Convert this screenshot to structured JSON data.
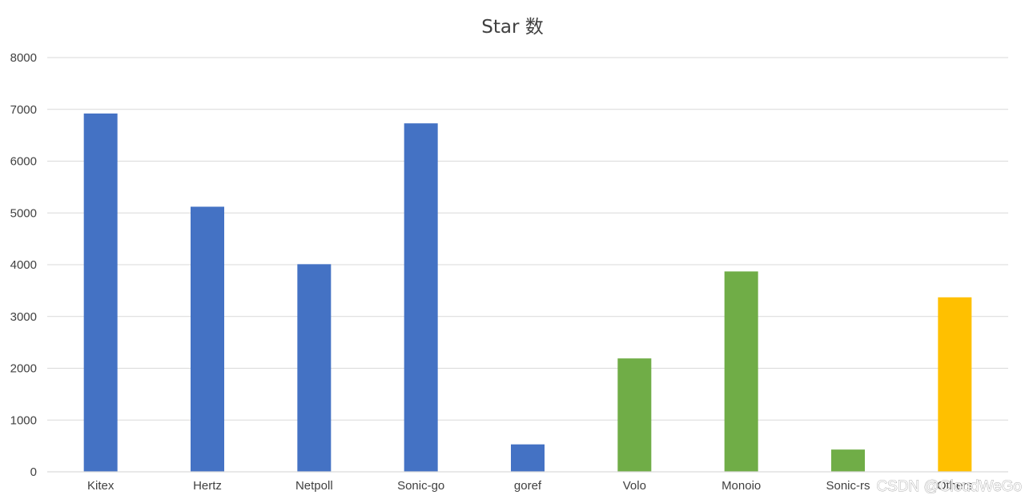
{
  "chart_data": {
    "type": "bar",
    "title": "Star 数",
    "xlabel": "",
    "ylabel": "",
    "ylim": [
      0,
      8000
    ],
    "yticks": [
      0,
      1000,
      2000,
      3000,
      4000,
      5000,
      6000,
      7000,
      8000
    ],
    "grid": true,
    "categories": [
      "Kitex",
      "Hertz",
      "Netpoll",
      "Sonic-go",
      "goref",
      "Volo",
      "Monoio",
      "Sonic-rs",
      "Others"
    ],
    "values": [
      6920,
      5120,
      4010,
      6730,
      530,
      2190,
      3870,
      430,
      3370
    ],
    "colors": [
      "#4472C4",
      "#4472C4",
      "#4472C4",
      "#4472C4",
      "#4472C4",
      "#70AD47",
      "#70AD47",
      "#70AD47",
      "#FFC000"
    ]
  },
  "watermark": "CSDN @CloudWeGo",
  "style": {
    "gridline_color": "#d9d9d9",
    "axis_color": "#d9d9d9"
  }
}
